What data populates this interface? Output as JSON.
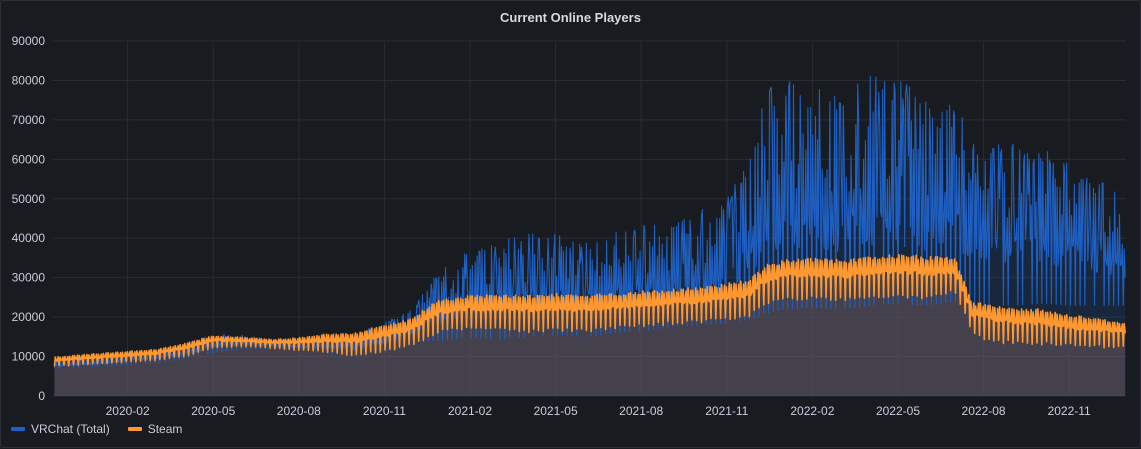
{
  "panel": {
    "title": "Current Online Players"
  },
  "chart_data": {
    "type": "area",
    "title": "Current Online Players",
    "xlabel": "",
    "ylabel": "",
    "ylim": [
      0,
      90000
    ],
    "yticks": [
      0,
      10000,
      20000,
      30000,
      40000,
      50000,
      60000,
      70000,
      80000,
      90000
    ],
    "ytick_labels": [
      "0",
      "10000",
      "20000",
      "30000",
      "40000",
      "50000",
      "60000",
      "70000",
      "80000",
      "90000"
    ],
    "xlim": [
      2019.865,
      2022.999
    ],
    "xticks": [
      2020.083,
      2020.333,
      2020.583,
      2020.833,
      2021.083,
      2021.333,
      2021.583,
      2021.833,
      2022.083,
      2022.333,
      2022.583,
      2022.833
    ],
    "xtick_labels": [
      "2020-02",
      "2020-05",
      "2020-08",
      "2020-11",
      "2021-02",
      "2021-05",
      "2021-08",
      "2021-11",
      "2022-02",
      "2022-05",
      "2022-08",
      "2022-11"
    ],
    "grid": true,
    "legend_position": "bottom-left",
    "series": [
      {
        "name": "VRChat (Total)",
        "color": "#1f60c4",
        "x": [
          2019.87,
          2020.0,
          2020.083,
          2020.167,
          2020.25,
          2020.333,
          2020.417,
          2020.5,
          2020.583,
          2020.667,
          2020.75,
          2020.833,
          2020.917,
          2020.97,
          2021.0,
          2021.083,
          2021.167,
          2021.25,
          2021.333,
          2021.417,
          2021.5,
          2021.583,
          2021.667,
          2021.75,
          2021.833,
          2021.9,
          2021.95,
          2022.0,
          2022.083,
          2022.167,
          2022.25,
          2022.333,
          2022.417,
          2022.5,
          2022.55,
          2022.583,
          2022.667,
          2022.75,
          2022.833,
          2022.999
        ],
        "low": [
          7000,
          7500,
          8000,
          8500,
          9500,
          11000,
          12000,
          12000,
          11500,
          11000,
          10000,
          11000,
          13000,
          14000,
          14000,
          15000,
          14500,
          15000,
          15500,
          15000,
          16000,
          16500,
          17500,
          18000,
          18500,
          19500,
          21000,
          22000,
          22500,
          22000,
          23000,
          23500,
          23000,
          24000,
          23000,
          23000,
          23000,
          23500,
          23000,
          23000
        ],
        "high": [
          9000,
          9500,
          11000,
          11500,
          12500,
          16000,
          15500,
          14500,
          14000,
          15000,
          16000,
          19000,
          22000,
          30000,
          32000,
          37000,
          40000,
          42000,
          41000,
          39000,
          42000,
          44000,
          45000,
          47000,
          50000,
          62000,
          78000,
          80000,
          82000,
          79000,
          82000,
          80000,
          77000,
          76000,
          65000,
          65000,
          64000,
          63000,
          60000,
          50000
        ]
      },
      {
        "name": "Steam",
        "color": "#ff9830",
        "x": [
          2019.87,
          2020.0,
          2020.083,
          2020.167,
          2020.25,
          2020.333,
          2020.417,
          2020.5,
          2020.583,
          2020.667,
          2020.75,
          2020.833,
          2020.917,
          2020.97,
          2021.0,
          2021.083,
          2021.167,
          2021.25,
          2021.333,
          2021.417,
          2021.5,
          2021.583,
          2021.667,
          2021.75,
          2021.833,
          2021.9,
          2021.95,
          2022.0,
          2022.083,
          2022.167,
          2022.25,
          2022.333,
          2022.417,
          2022.5,
          2022.55,
          2022.583,
          2022.667,
          2022.75,
          2022.833,
          2022.999
        ],
        "low": [
          7500,
          8000,
          8500,
          9000,
          10000,
          12000,
          12500,
          12000,
          11500,
          11000,
          10000,
          11000,
          13000,
          15000,
          16000,
          17000,
          16500,
          16000,
          16500,
          16000,
          17000,
          17500,
          18000,
          18500,
          19000,
          20000,
          23000,
          24000,
          24500,
          24000,
          24500,
          25000,
          24500,
          26000,
          16000,
          14000,
          13000,
          13000,
          12500,
          12000
        ],
        "high": [
          10000,
          11000,
          11500,
          12000,
          13500,
          15500,
          15000,
          14500,
          15000,
          16000,
          16500,
          18500,
          20000,
          24000,
          25000,
          26000,
          26000,
          26000,
          26500,
          26000,
          26500,
          27000,
          27500,
          28000,
          29000,
          30000,
          34000,
          35000,
          35500,
          35000,
          36000,
          36500,
          36000,
          35500,
          24000,
          24000,
          23000,
          22500,
          21000,
          19000
        ]
      }
    ]
  }
}
